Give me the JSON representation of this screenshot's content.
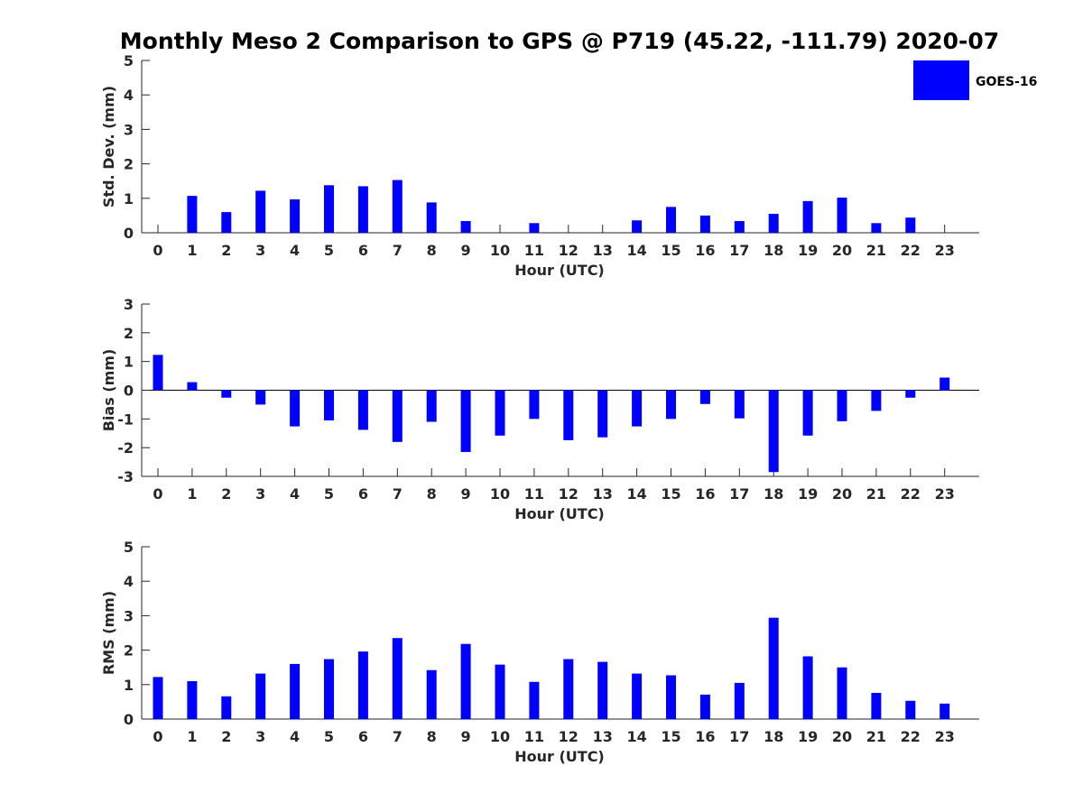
{
  "title": "Monthly Meso 2 Comparison to GPS @ P719 (45.22, -111.79) 2020-07",
  "legend": {
    "label": "GOES-16",
    "color": "#0000ff",
    "placement": "top-right"
  },
  "bar_color": "#0000ff",
  "chart_data": [
    {
      "type": "bar",
      "xlabel": "Hour (UTC)",
      "ylabel": "Std. Dev. (mm)",
      "ylim": [
        0,
        5
      ],
      "yticks": [
        0,
        1,
        2,
        3,
        4,
        5
      ],
      "categories": [
        "0",
        "1",
        "2",
        "3",
        "4",
        "5",
        "6",
        "7",
        "8",
        "9",
        "10",
        "11",
        "12",
        "13",
        "14",
        "15",
        "16",
        "17",
        "18",
        "19",
        "20",
        "21",
        "22",
        "23"
      ],
      "series": [
        {
          "name": "GOES-16",
          "values": [
            0,
            1.07,
            0.6,
            1.22,
            0.97,
            1.38,
            1.35,
            1.53,
            0.88,
            0.34,
            0,
            0.28,
            0,
            0,
            0.36,
            0.75,
            0.5,
            0.34,
            0.55,
            0.92,
            1.02,
            0.28,
            0.44,
            0
          ]
        }
      ]
    },
    {
      "type": "bar",
      "xlabel": "Hour (UTC)",
      "ylabel": "Bias (mm)",
      "ylim": [
        -3,
        3
      ],
      "yticks": [
        -3,
        -2,
        -1,
        0,
        1,
        2,
        3
      ],
      "categories": [
        "0",
        "1",
        "2",
        "3",
        "4",
        "5",
        "6",
        "7",
        "8",
        "9",
        "10",
        "11",
        "12",
        "13",
        "14",
        "15",
        "16",
        "17",
        "18",
        "19",
        "20",
        "21",
        "22",
        "23"
      ],
      "series": [
        {
          "name": "GOES-16",
          "values": [
            1.23,
            0.28,
            -0.26,
            -0.5,
            -1.26,
            -1.05,
            -1.38,
            -1.8,
            -1.1,
            -2.15,
            -1.58,
            -1.0,
            -1.74,
            -1.64,
            -1.26,
            -1.0,
            -0.48,
            -0.98,
            -2.85,
            -1.58,
            -1.08,
            -0.72,
            -0.26,
            0.44
          ]
        }
      ]
    },
    {
      "type": "bar",
      "xlabel": "Hour (UTC)",
      "ylabel": "RMS (mm)",
      "ylim": [
        0,
        5
      ],
      "yticks": [
        0,
        1,
        2,
        3,
        4,
        5
      ],
      "categories": [
        "0",
        "1",
        "2",
        "3",
        "4",
        "5",
        "6",
        "7",
        "8",
        "9",
        "10",
        "11",
        "12",
        "13",
        "14",
        "15",
        "16",
        "17",
        "18",
        "19",
        "20",
        "21",
        "22",
        "23"
      ],
      "series": [
        {
          "name": "GOES-16",
          "values": [
            1.22,
            1.1,
            0.66,
            1.32,
            1.6,
            1.74,
            1.96,
            2.35,
            1.42,
            2.18,
            1.58,
            1.08,
            1.74,
            1.66,
            1.32,
            1.27,
            0.71,
            1.05,
            2.94,
            1.82,
            1.5,
            0.76,
            0.53,
            0.45
          ]
        }
      ]
    }
  ]
}
